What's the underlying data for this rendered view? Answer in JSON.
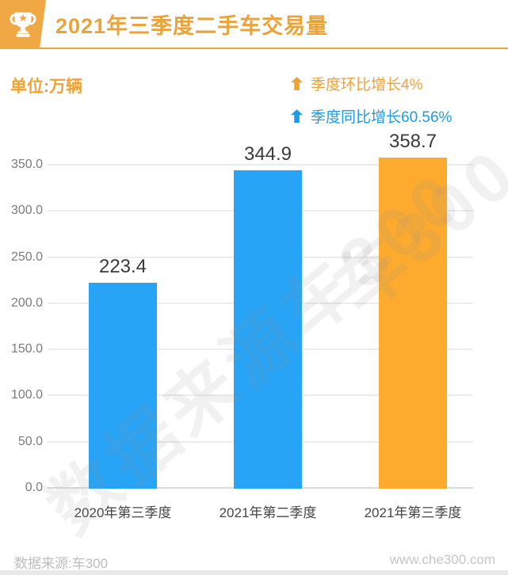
{
  "header": {
    "title": "2021年三季度二手车交易量"
  },
  "meta": {
    "unit_label": "单位:万辆"
  },
  "legend": {
    "items": [
      {
        "icon": "up-arrow-icon",
        "label": "季度环比增长4%",
        "color": "#EFA238"
      },
      {
        "icon": "up-arrow-icon",
        "label": "季度同比增长60.56%",
        "color": "#1E9BE4"
      }
    ]
  },
  "chart_data": {
    "type": "bar",
    "title": "2021年三季度二手车交易量",
    "ylabel": "单位:万辆",
    "categories": [
      "2020年第三季度",
      "2021年第二季度",
      "2021年第三季度"
    ],
    "values": [
      223.4,
      344.9,
      358.7
    ],
    "value_labels": [
      "223.4",
      "344.9",
      "358.7"
    ],
    "bar_colors": [
      "#27A4F5",
      "#27A4F5",
      "#FCAB2F"
    ],
    "yticks": [
      0,
      50,
      100,
      150,
      200,
      250,
      300,
      350
    ],
    "ylim": [
      0,
      383
    ],
    "grid": true,
    "legend_position": "top-right",
    "annotations": [
      {
        "label": "季度环比增长4%",
        "value": "4%"
      },
      {
        "label": "季度同比增长60.56%",
        "value": "60.56%"
      }
    ]
  },
  "watermark": {
    "text1": "数据来源车300",
    "text2": "车300"
  },
  "footer": {
    "source": "数据来源:车300",
    "website": "www.che300.com"
  },
  "colors": {
    "accent_orange": "#EFA843",
    "title_orange": "#E9A33C",
    "bar_blue": "#27A4F5",
    "bar_orange": "#FCAB2F",
    "legend_blue": "#1E9BE4",
    "gridline": "#ECECEC"
  }
}
